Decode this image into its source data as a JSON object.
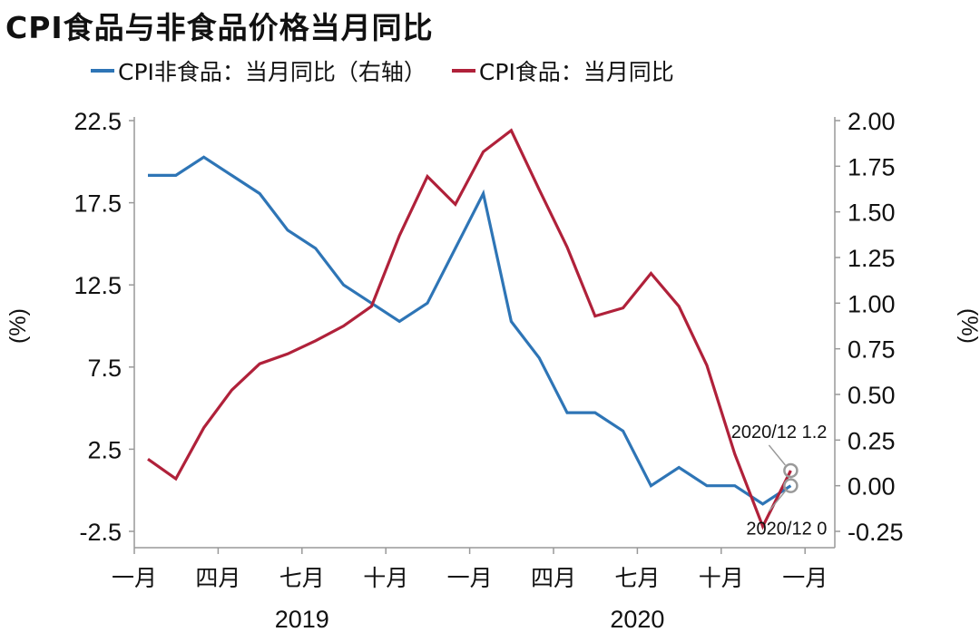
{
  "title": "CPI食品与非食品价格当月同比",
  "legend": [
    {
      "label": "CPI非食品：当月同比（右轴）",
      "color": "#2e75b6"
    },
    {
      "label": "CPI食品：当月同比",
      "color": "#b0213a"
    }
  ],
  "chart_data": {
    "type": "line",
    "x": [
      "2019-01",
      "2019-02",
      "2019-03",
      "2019-04",
      "2019-05",
      "2019-06",
      "2019-07",
      "2019-08",
      "2019-09",
      "2019-10",
      "2019-11",
      "2019-12",
      "2020-01",
      "2020-02",
      "2020-03",
      "2020-04",
      "2020-05",
      "2020-06",
      "2020-07",
      "2020-08",
      "2020-09",
      "2020-10",
      "2020-11",
      "2020-12"
    ],
    "series": [
      {
        "name": "CPI非食品：当月同比（右轴）",
        "axis": "right",
        "color": "#2e75b6",
        "values": [
          1.7,
          1.7,
          1.8,
          1.7,
          1.6,
          1.4,
          1.3,
          1.1,
          1.0,
          0.9,
          1.0,
          1.3,
          1.6,
          0.9,
          0.7,
          0.4,
          0.4,
          0.3,
          0.0,
          0.1,
          0.0,
          0.0,
          -0.1,
          0.0
        ]
      },
      {
        "name": "CPI食品：当月同比",
        "axis": "left",
        "color": "#b0213a",
        "values": [
          1.9,
          0.7,
          3.8,
          6.1,
          7.7,
          8.3,
          9.1,
          10.0,
          11.2,
          15.5,
          19.1,
          17.4,
          20.6,
          21.9,
          18.3,
          14.8,
          10.6,
          11.1,
          13.2,
          11.2,
          7.6,
          2.2,
          -2.2,
          1.2
        ]
      }
    ],
    "left_axis": {
      "label": "(%)",
      "min": -2.5,
      "max": 22.5,
      "ticks": [
        "-2.5",
        "2.5",
        "7.5",
        "12.5",
        "17.5",
        "22.5"
      ]
    },
    "right_axis": {
      "label": "(%)",
      "min": -0.25,
      "max": 2.0,
      "ticks": [
        "-0.25",
        "0.00",
        "0.25",
        "0.50",
        "0.75",
        "1.00",
        "1.25",
        "1.50",
        "1.75",
        "2.00"
      ]
    },
    "x_tick_labels": [
      "一月",
      "四月",
      "七月",
      "十月",
      "一月",
      "四月",
      "七月",
      "十月",
      "一月"
    ],
    "year_labels": [
      "2019",
      "2020"
    ],
    "annotations": [
      {
        "text": "2020/12 1.2",
        "series": "CPI食品：当月同比"
      },
      {
        "text": "2020/12 0",
        "series": "CPI非食品：当月同比（右轴）"
      }
    ],
    "grid": false
  }
}
